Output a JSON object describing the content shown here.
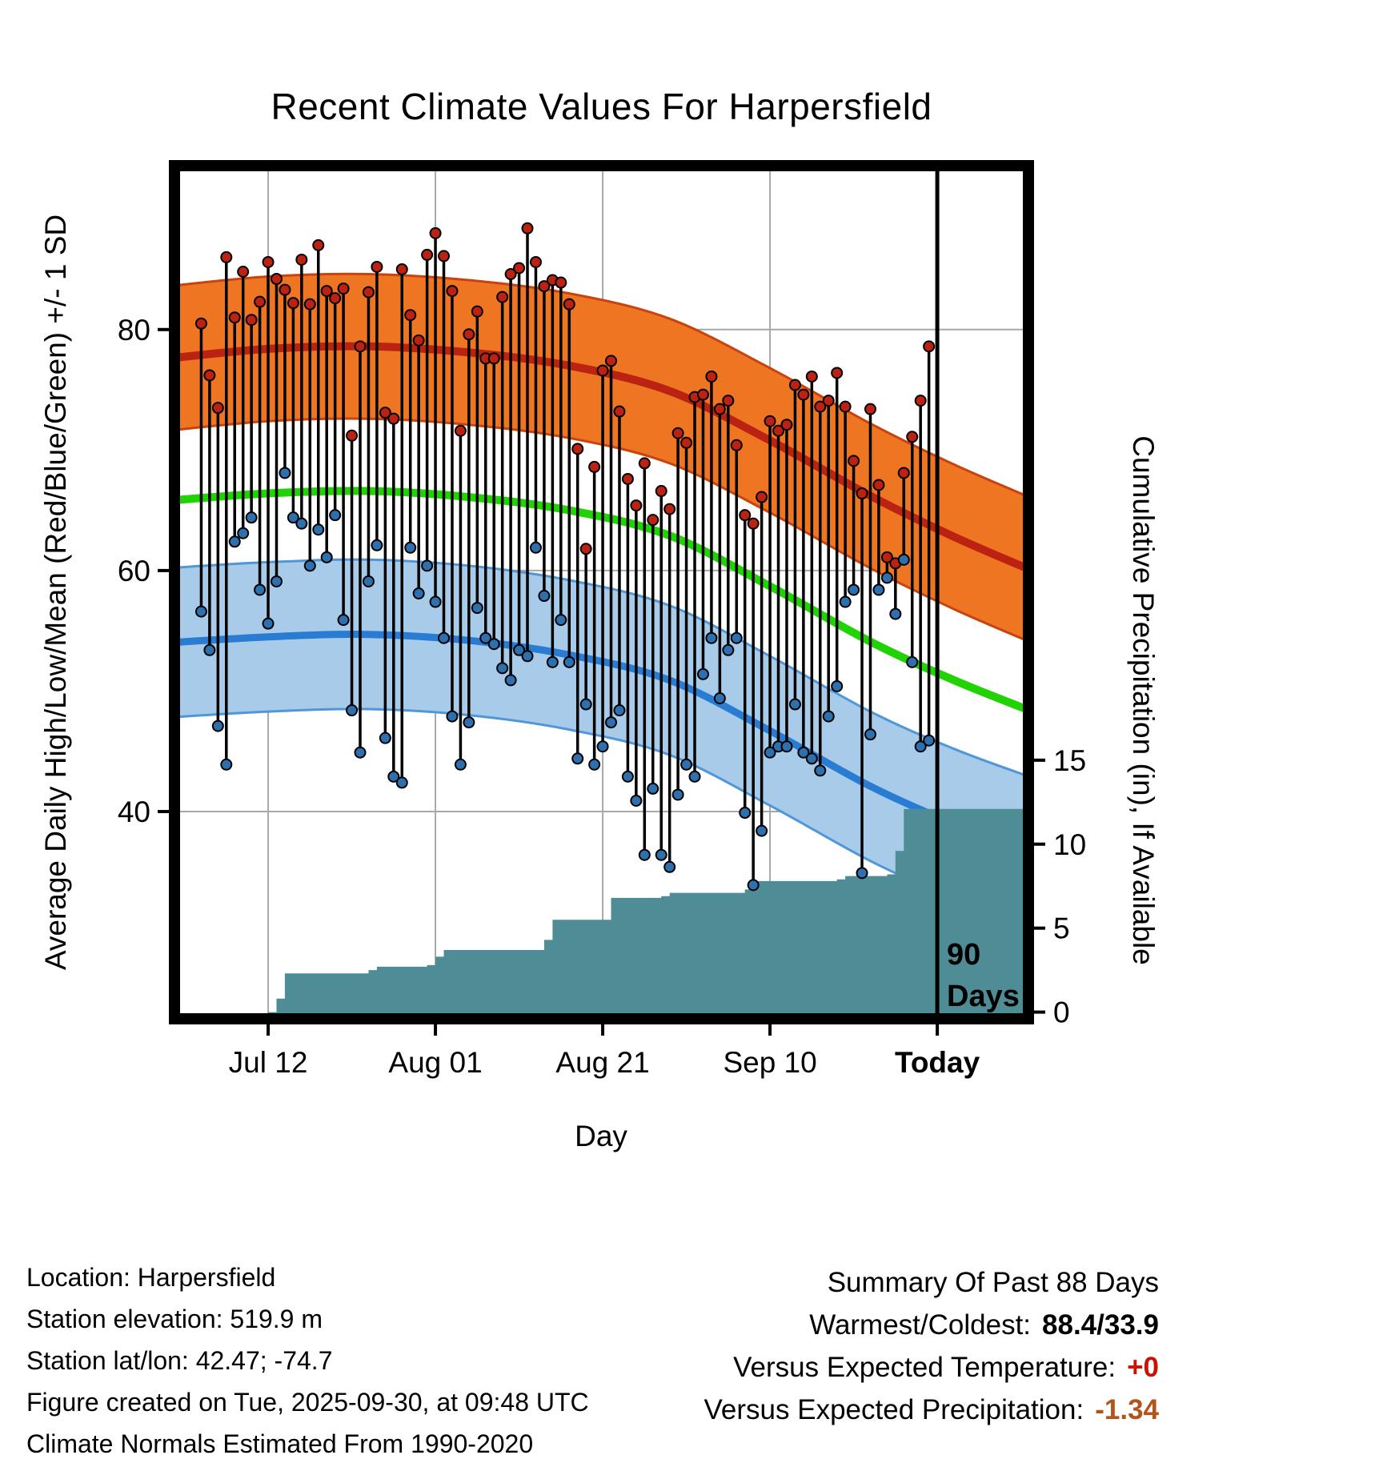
{
  "title": "Recent Climate Values For Harpersfield",
  "axes": {
    "x_label": "Day",
    "y_left_label": "Average Daily High/Low/Mean (Red/Blue/Green) +/- 1 SD",
    "y_right_label": "Cumulative Precipitation (in), If Available"
  },
  "annotation": {
    "line1": "90",
    "line2": "Days"
  },
  "footer": {
    "location": "Location: Harpersfield",
    "elevation": "Station elevation: 519.9 m",
    "latlon": "Station lat/lon: 42.47; -74.7",
    "created": "Figure created on Tue, 2025-09-30, at 09:48 UTC",
    "normals": "Climate Normals Estimated From 1990-2020"
  },
  "summary": {
    "heading": "Summary Of Past 88 Days",
    "warmest_coldest_label": "Warmest/Coldest:",
    "warmest_coldest_value": "88.4/33.9",
    "vs_temp_label": "Versus Expected Temperature:",
    "vs_temp_value": "+0",
    "vs_precip_label": "Versus Expected Precipitation:",
    "vs_precip_value": "-1.34"
  },
  "colors": {
    "grid": "#a8a8a8",
    "high_band": "#ee7522",
    "high_band_edge": "#c8430f",
    "high_line": "#bb2211",
    "mean_line": "#21d305",
    "low_band": "#a8cbe9",
    "low_band_edge": "#4f97d8",
    "low_line": "#2a7cd3",
    "precip_fill": "#4e8d95",
    "stem": "#000000",
    "high_dot": "#bb2211",
    "low_dot": "#2e6fae",
    "temp_anomaly": "#cc1100",
    "precip_anomaly": "#b4541b"
  },
  "chart_data": {
    "type": "line",
    "subtype": "daily high/low stems with climatology bands and cumulative precipitation area",
    "title": "Recent Climate Values For Harpersfield",
    "xlabel": "Day",
    "ylabel_left": "Average Daily High/Low/Mean (Red/Blue/Green) +/- 1 SD",
    "ylabel_right": "Cumulative Precipitation (in), If Available",
    "x_domain": [
      -3.2,
      98.9
    ],
    "y_left_domain": [
      22.8,
      93.6
    ],
    "y_right_domain": [
      -0.4,
      50.4
    ],
    "x_ticks": [
      {
        "day": 8,
        "label": "Jul 12"
      },
      {
        "day": 28,
        "label": "Aug 01"
      },
      {
        "day": 48,
        "label": "Aug 21"
      },
      {
        "day": 68,
        "label": "Sep 10"
      },
      {
        "day": 88,
        "label": "Today",
        "bold": true
      }
    ],
    "y_left_ticks": [
      40,
      60,
      80
    ],
    "y_right_ticks": [
      0,
      5,
      10,
      15
    ],
    "today_day": 88,
    "daily_high": [
      80.5,
      76.2,
      73.5,
      86.0,
      81.0,
      84.8,
      80.8,
      82.3,
      85.6,
      84.2,
      83.3,
      82.2,
      85.8,
      82.1,
      87.0,
      83.2,
      82.6,
      83.4,
      71.2,
      78.6,
      83.1,
      85.2,
      73.1,
      72.6,
      85.0,
      81.2,
      79.1,
      86.2,
      88.0,
      86.1,
      83.2,
      71.6,
      79.6,
      81.5,
      77.6,
      77.6,
      82.7,
      84.6,
      85.1,
      88.4,
      85.6,
      83.6,
      84.1,
      83.9,
      82.1,
      70.1,
      61.8,
      68.6,
      76.6,
      77.4,
      73.2,
      67.6,
      65.4,
      68.9,
      64.2,
      66.6,
      65.1,
      71.4,
      70.6,
      74.4,
      74.6,
      76.1,
      73.4,
      74.1,
      70.4,
      64.6,
      63.9,
      66.1,
      72.4,
      71.6,
      72.1,
      75.4,
      74.6,
      76.1,
      73.6,
      74.1,
      76.4,
      73.6,
      69.1,
      66.4,
      73.4,
      67.1,
      61.1,
      60.6,
      68.1,
      71.1,
      74.1,
      78.6
    ],
    "daily_low": [
      56.6,
      53.4,
      47.1,
      43.9,
      62.4,
      63.1,
      64.4,
      58.4,
      55.6,
      59.1,
      68.1,
      64.4,
      63.9,
      60.4,
      63.4,
      61.1,
      64.6,
      55.9,
      48.4,
      44.9,
      59.1,
      62.1,
      46.1,
      42.9,
      42.4,
      61.9,
      58.1,
      60.4,
      57.4,
      54.4,
      47.9,
      43.9,
      47.4,
      56.9,
      54.4,
      53.9,
      51.9,
      50.9,
      53.4,
      52.9,
      61.9,
      57.9,
      52.4,
      55.9,
      52.4,
      44.4,
      48.9,
      43.9,
      45.4,
      47.4,
      48.4,
      42.9,
      40.9,
      36.4,
      41.9,
      36.4,
      35.4,
      41.4,
      43.9,
      42.9,
      51.4,
      54.4,
      49.4,
      53.4,
      54.4,
      39.9,
      33.9,
      38.4,
      44.9,
      45.4,
      45.4,
      48.9,
      44.9,
      44.4,
      43.4,
      47.9,
      50.4,
      57.4,
      58.4,
      34.9,
      46.4,
      58.4,
      59.4,
      56.4,
      60.9,
      52.4,
      45.4,
      45.9
    ],
    "normals": {
      "sample_days": [
        -4,
        8,
        20,
        32,
        44,
        56,
        68,
        80,
        90,
        99
      ],
      "high_mean": [
        77.6,
        78.4,
        78.6,
        78.1,
        77.0,
        74.9,
        70.8,
        66.2,
        62.8,
        60.1
      ],
      "mean": [
        65.8,
        66.4,
        66.6,
        66.1,
        65.0,
        62.9,
        58.7,
        54.1,
        50.9,
        48.4
      ],
      "low_mean": [
        54.0,
        54.5,
        54.7,
        54.2,
        53.0,
        50.9,
        46.7,
        42.1,
        39.0,
        36.7
      ],
      "high_sd": 6.0,
      "low_sd": 6.2
    },
    "precip_cumulative_steps": [
      [
        8,
        0
      ],
      [
        9,
        0.8
      ],
      [
        10,
        2.3
      ],
      [
        20,
        2.5
      ],
      [
        21,
        2.7
      ],
      [
        27,
        2.8
      ],
      [
        28,
        3.3
      ],
      [
        29,
        3.7
      ],
      [
        40,
        3.7
      ],
      [
        41,
        4.3
      ],
      [
        42,
        5.5
      ],
      [
        48,
        5.5
      ],
      [
        49,
        6.8
      ],
      [
        55,
        6.9
      ],
      [
        56,
        7.1
      ],
      [
        64,
        7.1
      ],
      [
        65,
        7.3
      ],
      [
        66,
        7.8
      ],
      [
        76,
        7.9
      ],
      [
        77,
        8.1
      ],
      [
        82,
        8.2
      ],
      [
        83,
        9.6
      ],
      [
        84,
        12.1
      ],
      [
        99,
        12.1
      ]
    ]
  }
}
